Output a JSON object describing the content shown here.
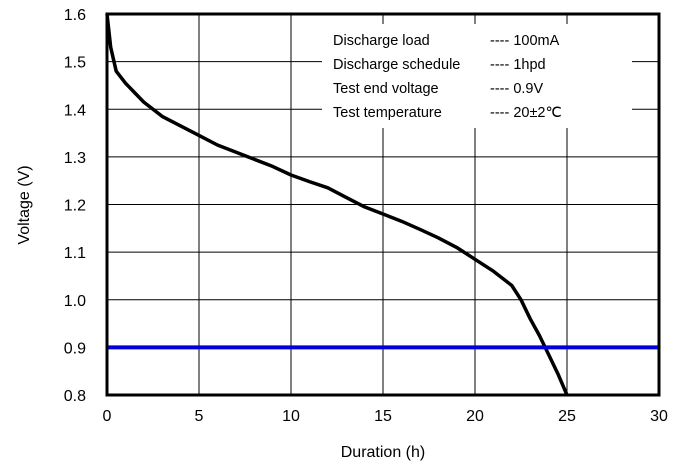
{
  "chart_data": {
    "type": "line",
    "xlabel": "Duration (h)",
    "ylabel": "Voltage (V)",
    "xlim": [
      0,
      30
    ],
    "ylim": [
      0.8,
      1.6
    ],
    "x_ticks": [
      "0",
      "5",
      "10",
      "15",
      "20",
      "25",
      "30"
    ],
    "y_ticks": [
      "0.8",
      "0.9",
      "1.0",
      "1.1",
      "1.2",
      "1.3",
      "1.4",
      "1.5",
      "1.6"
    ],
    "grid": true,
    "series": [
      {
        "color": "#000000",
        "x": [
          0,
          0.2,
          0.5,
          1,
          1.5,
          2,
          2.5,
          3,
          3.5,
          4,
          5,
          6,
          7,
          8,
          9,
          10,
          11,
          12,
          13,
          14,
          15,
          16,
          17,
          18,
          19,
          20,
          21,
          22,
          22.5,
          23,
          23.5,
          24,
          24.5,
          25
        ],
        "y": [
          1.6,
          1.53,
          1.48,
          1.455,
          1.435,
          1.415,
          1.4,
          1.385,
          1.375,
          1.365,
          1.345,
          1.325,
          1.31,
          1.295,
          1.28,
          1.262,
          1.248,
          1.235,
          1.215,
          1.195,
          1.18,
          1.165,
          1.148,
          1.13,
          1.11,
          1.085,
          1.06,
          1.03,
          1.0,
          0.96,
          0.925,
          0.885,
          0.845,
          0.8
        ]
      },
      {
        "color": "#0000dd",
        "x": [
          0,
          30
        ],
        "y": [
          0.9,
          0.9
        ]
      }
    ],
    "annotation_box": {
      "rows": [
        {
          "label": "Discharge load",
          "value": "---- 100mA"
        },
        {
          "label": "Discharge schedule",
          "value": "---- 1hpd"
        },
        {
          "label": "Test end voltage",
          "value": "---- 0.9V"
        },
        {
          "label": "Test temperature",
          "value": "---- 20±2℃"
        }
      ]
    }
  }
}
